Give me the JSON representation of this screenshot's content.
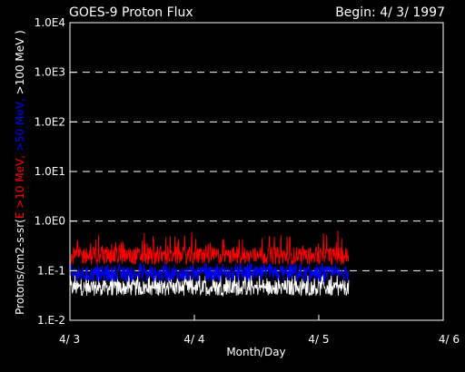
{
  "chart_data": {
    "type": "line",
    "title": "GOES-9 Proton Flux",
    "begin_label": "Begin: 4/ 3/ 1997",
    "xlabel": "Month/Day",
    "ylabel_parts": [
      {
        "text": "Protons/cm2-s-sr(",
        "color": "#ffffff"
      },
      {
        "text": "E >10 MeV, ",
        "color": "#ff0000"
      },
      {
        "text": ">50 MeV, ",
        "color": "#0000ff"
      },
      {
        "text": ">100 MeV )",
        "color": "#ffffff"
      }
    ],
    "x_ticks": [
      "4/ 3",
      "4/ 4",
      "4/ 5",
      "4/ 6"
    ],
    "xlim": [
      0,
      3
    ],
    "y_scale": "log",
    "ylim": [
      0.01,
      10000
    ],
    "y_ticks": [
      {
        "value": 10000,
        "label": "1.0E4"
      },
      {
        "value": 1000,
        "label": "1.0E3"
      },
      {
        "value": 100,
        "label": "1.0E2"
      },
      {
        "value": 10,
        "label": "1.0E1"
      },
      {
        "value": 1,
        "label": "1.0E0"
      },
      {
        "value": 0.1,
        "label": "1.E-1"
      },
      {
        "value": 0.01,
        "label": "1.E-2"
      }
    ],
    "grid": "horizontal-dashed",
    "data_end_day": 2.24,
    "series": [
      {
        "color": "#ffffff",
        "base": 0.045,
        "spread": 0.16,
        "low": 0.03,
        "high": 0.08
      },
      {
        "color": "#0000ff",
        "base": 0.085,
        "spread": 0.16,
        "low": 0.055,
        "high": 0.14
      },
      {
        "color": "#ff0000",
        "base": 0.2,
        "spread": 0.18,
        "low": 0.13,
        "high": 0.65
      }
    ]
  }
}
